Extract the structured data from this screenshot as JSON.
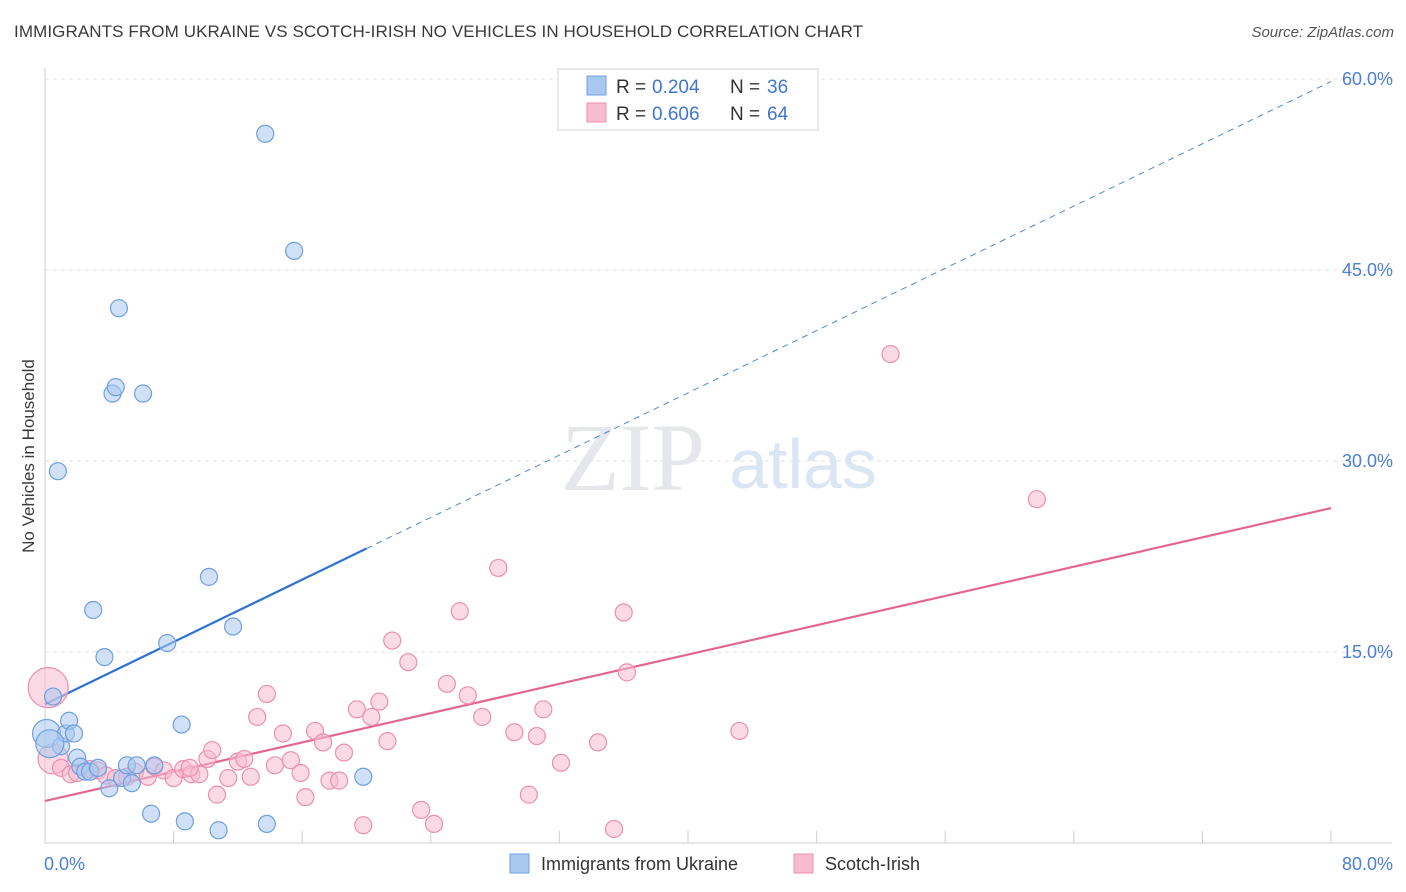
{
  "title": "IMMIGRANTS FROM UKRAINE VS SCOTCH-IRISH NO VEHICLES IN HOUSEHOLD CORRELATION CHART",
  "source": "Source: ZipAtlas.com",
  "watermark": {
    "zip": "ZIP",
    "atlas": "atlas"
  },
  "colors": {
    "ukraine_fill": "#a9c8f0",
    "ukraine_stroke": "#6f9fe0",
    "ukraine_line": "#2f72d0",
    "scotch_fill": "#f7bcd0",
    "scotch_stroke": "#ec8fb0",
    "scotch_line": "#e3668f",
    "tick_text": "#4a7fd4"
  },
  "legend": {
    "rows": [
      {
        "r_label": "R =",
        "r_value": "0.204",
        "n_label": "N =",
        "n_value": "36"
      },
      {
        "r_label": "R =",
        "r_value": "0.606",
        "n_label": "N =",
        "n_value": "64"
      }
    ]
  },
  "chart_data": {
    "type": "scatter",
    "title": "IMMIGRANTS FROM UKRAINE VS SCOTCH-IRISH NO VEHICLES IN HOUSEHOLD CORRELATION CHART",
    "xlabel": "",
    "ylabel": "No Vehicles in Household",
    "xlim": [
      0,
      80
    ],
    "ylim": [
      0,
      63
    ],
    "x_tick_labels": [
      "0.0%",
      "80.0%"
    ],
    "y_ticks": [
      15,
      30,
      45,
      60
    ],
    "y_tick_labels": [
      "15.0%",
      "30.0%",
      "45.0%",
      "60.0%"
    ],
    "grid": true,
    "legend_position": "top-center",
    "series": [
      {
        "name": "Immigrants from Ukraine",
        "points": [
          [
            0.1,
            8.6
          ],
          [
            0.5,
            11.5
          ],
          [
            0.8,
            29.2
          ],
          [
            1.0,
            7.6
          ],
          [
            1.3,
            8.6
          ],
          [
            1.5,
            9.6
          ],
          [
            1.8,
            8.6
          ],
          [
            2.0,
            6.7
          ],
          [
            2.2,
            6.0
          ],
          [
            2.5,
            5.6
          ],
          [
            2.8,
            5.6
          ],
          [
            3.0,
            18.3
          ],
          [
            3.3,
            5.9
          ],
          [
            3.7,
            14.6
          ],
          [
            4.0,
            4.3
          ],
          [
            4.2,
            35.3
          ],
          [
            4.4,
            35.8
          ],
          [
            4.6,
            42.0
          ],
          [
            4.8,
            5.1
          ],
          [
            5.1,
            6.1
          ],
          [
            5.4,
            4.7
          ],
          [
            5.7,
            6.1
          ],
          [
            6.1,
            35.3
          ],
          [
            6.6,
            2.3
          ],
          [
            6.8,
            6.1
          ],
          [
            7.6,
            15.7
          ],
          [
            8.5,
            9.3
          ],
          [
            8.7,
            1.7
          ],
          [
            10.2,
            20.9
          ],
          [
            10.8,
            1.0
          ],
          [
            11.7,
            17.0
          ],
          [
            13.7,
            55.7
          ],
          [
            13.8,
            1.5
          ],
          [
            15.5,
            46.5
          ],
          [
            19.8,
            5.2
          ],
          [
            0.3,
            7.8
          ]
        ],
        "trend": {
          "x0": 0,
          "y0": 10.9,
          "x1": 80,
          "y1": 59.8,
          "solid_until_x": 20
        }
      },
      {
        "name": "Scotch-Irish",
        "points": [
          [
            0.2,
            12.2
          ],
          [
            0.5,
            6.6
          ],
          [
            1.0,
            5.9
          ],
          [
            1.6,
            5.4
          ],
          [
            2.0,
            5.5
          ],
          [
            2.8,
            5.8
          ],
          [
            3.3,
            5.7
          ],
          [
            3.8,
            5.3
          ],
          [
            4.4,
            5.1
          ],
          [
            5.1,
            5.2
          ],
          [
            5.6,
            5.6
          ],
          [
            6.4,
            5.2
          ],
          [
            6.8,
            6.0
          ],
          [
            7.4,
            5.7
          ],
          [
            8.0,
            5.1
          ],
          [
            8.6,
            5.8
          ],
          [
            9.1,
            5.4
          ],
          [
            9.6,
            5.4
          ],
          [
            10.1,
            6.6
          ],
          [
            10.4,
            7.3
          ],
          [
            10.7,
            3.8
          ],
          [
            11.4,
            5.1
          ],
          [
            12.0,
            6.4
          ],
          [
            12.4,
            6.6
          ],
          [
            12.8,
            5.2
          ],
          [
            13.2,
            9.9
          ],
          [
            13.8,
            11.7
          ],
          [
            14.3,
            6.1
          ],
          [
            14.8,
            8.6
          ],
          [
            15.3,
            6.5
          ],
          [
            15.9,
            5.5
          ],
          [
            16.2,
            3.6
          ],
          [
            16.8,
            8.8
          ],
          [
            17.3,
            7.9
          ],
          [
            17.7,
            4.9
          ],
          [
            18.3,
            4.9
          ],
          [
            18.6,
            7.1
          ],
          [
            19.4,
            10.5
          ],
          [
            19.8,
            1.4
          ],
          [
            20.3,
            9.9
          ],
          [
            20.8,
            11.1
          ],
          [
            21.3,
            8.0
          ],
          [
            21.6,
            15.9
          ],
          [
            22.6,
            14.2
          ],
          [
            23.4,
            2.6
          ],
          [
            24.2,
            1.5
          ],
          [
            25.0,
            12.5
          ],
          [
            25.8,
            18.2
          ],
          [
            26.3,
            11.6
          ],
          [
            27.2,
            9.9
          ],
          [
            28.2,
            21.6
          ],
          [
            29.2,
            8.7
          ],
          [
            30.1,
            3.8
          ],
          [
            30.6,
            8.4
          ],
          [
            31.0,
            10.5
          ],
          [
            32.1,
            6.3
          ],
          [
            34.4,
            7.9
          ],
          [
            35.4,
            1.1
          ],
          [
            36.0,
            18.1
          ],
          [
            36.2,
            13.4
          ],
          [
            43.2,
            8.8
          ],
          [
            52.6,
            38.4
          ],
          [
            61.7,
            27.0
          ],
          [
            9.0,
            5.9
          ]
        ],
        "trend": {
          "x0": 0,
          "y0": 3.3,
          "x1": 80,
          "y1": 26.3,
          "solid_until_x": 80
        }
      }
    ]
  }
}
